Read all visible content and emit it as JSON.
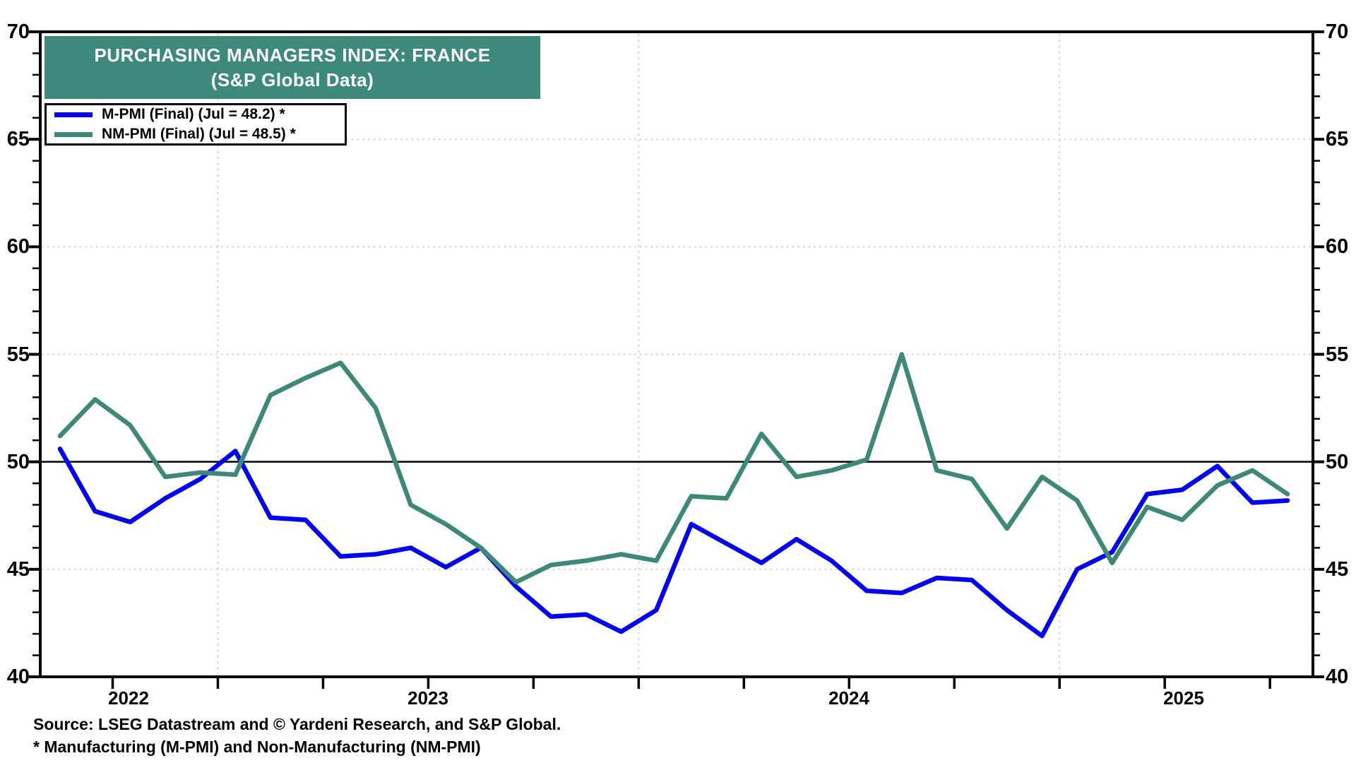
{
  "chart_data": {
    "type": "line",
    "title": "PURCHASING MANAGERS INDEX: FRANCE",
    "subtitle": "(S&P Global Data)",
    "ylim": [
      40,
      70
    ],
    "ytick_major_step": 5,
    "ytick_minor_step": 1,
    "ytick_labels": [
      "70",
      "65",
      "60",
      "55",
      "50",
      "45",
      "40"
    ],
    "year_labels": [
      "2022",
      "2023",
      "2024",
      "2025"
    ],
    "reference_line_y": 50,
    "grid": {
      "h_dotted_values": [
        65,
        60,
        55,
        45
      ],
      "v_dashed_at_january": true,
      "color": "#d9d9d9"
    },
    "months": [
      "2022-08",
      "2022-09",
      "2022-10",
      "2022-11",
      "2022-12",
      "2023-01",
      "2023-02",
      "2023-03",
      "2023-04",
      "2023-05",
      "2023-06",
      "2023-07",
      "2023-08",
      "2023-09",
      "2023-10",
      "2023-11",
      "2023-12",
      "2024-01",
      "2024-02",
      "2024-03",
      "2024-04",
      "2024-05",
      "2024-06",
      "2024-07",
      "2024-08",
      "2024-09",
      "2024-10",
      "2024-11",
      "2024-12",
      "2025-01",
      "2025-02",
      "2025-03",
      "2025-04",
      "2025-05",
      "2025-06",
      "2025-07"
    ],
    "series": [
      {
        "name": "M-PMI (Final) (Jul = 48.2) *",
        "color": "#0202ee",
        "values": [
          50.6,
          47.7,
          47.2,
          48.3,
          49.2,
          50.5,
          47.4,
          47.3,
          45.6,
          45.7,
          46.0,
          45.1,
          46.0,
          44.2,
          42.8,
          42.9,
          42.1,
          43.1,
          47.1,
          46.2,
          45.3,
          46.4,
          45.4,
          44.0,
          43.9,
          44.6,
          44.5,
          43.1,
          41.9,
          45.0,
          45.8,
          48.5,
          48.7,
          49.8,
          48.1,
          48.2
        ]
      },
      {
        "name": "NM-PMI (Final) (Jul = 48.5) *",
        "color": "#3E8878",
        "values": [
          51.2,
          52.9,
          51.7,
          49.3,
          49.5,
          49.4,
          53.1,
          53.9,
          54.6,
          52.5,
          48.0,
          47.1,
          46.0,
          44.4,
          45.2,
          45.4,
          45.7,
          45.4,
          48.4,
          48.3,
          51.3,
          49.3,
          49.6,
          50.1,
          55.0,
          49.6,
          49.2,
          46.9,
          49.3,
          48.2,
          45.3,
          47.9,
          47.3,
          48.9,
          49.6,
          48.5
        ]
      }
    ],
    "legend_position": "top-left",
    "title_bar_color": "#3D8A7D"
  },
  "footer": {
    "source": "Source: LSEG Datastream and © Yardeni Research, and S&P Global.",
    "footnote": "* Manufacturing (M-PMI) and Non-Manufacturing (NM-PMI)"
  }
}
